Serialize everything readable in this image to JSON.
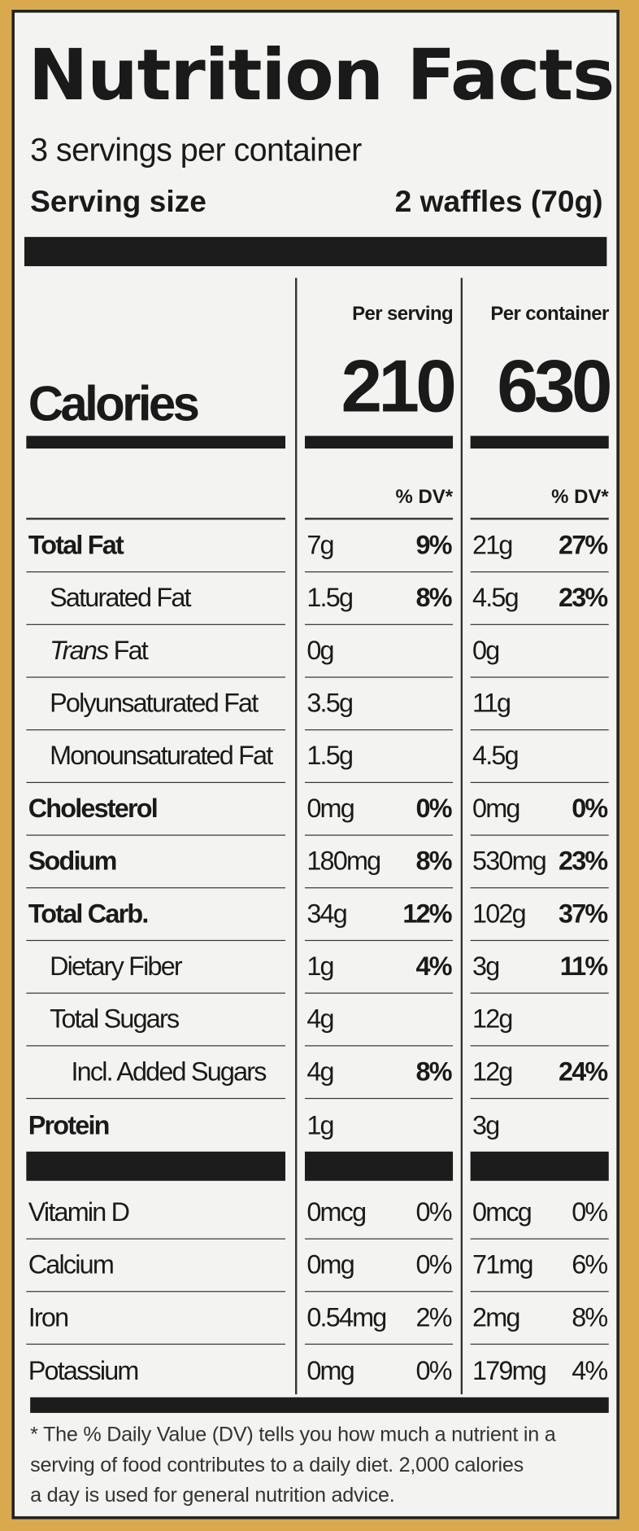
{
  "title": "Nutrition Facts",
  "servings_per_container": "3 servings per container",
  "serving_size_label": "Serving size",
  "serving_size_value": "2 waffles (70g)",
  "columns": {
    "per_serving": "Per serving",
    "per_container": "Per container"
  },
  "calories": {
    "label": "Calories",
    "per_serving": "210",
    "per_container": "630"
  },
  "dv_header": "% DV*",
  "nutrients": [
    {
      "label": "Total Fat",
      "bold": true,
      "indent": 0,
      "ps": "7g",
      "ps_dv": "9%",
      "pc": "21g",
      "pc_dv": "27%"
    },
    {
      "label": "Saturated Fat",
      "indent": 1,
      "ps": "1.5g",
      "ps_dv": "8%",
      "pc": "4.5g",
      "pc_dv": "23%"
    },
    {
      "label": "Fat",
      "italic_prefix": "Trans",
      "indent": 1,
      "ps": "0g",
      "ps_dv": "",
      "pc": "0g",
      "pc_dv": ""
    },
    {
      "label": "Polyunsaturated Fat",
      "indent": 1,
      "ps": "3.5g",
      "ps_dv": "",
      "pc": "11g",
      "pc_dv": ""
    },
    {
      "label": "Monounsaturated Fat",
      "indent": 1,
      "ps": "1.5g",
      "ps_dv": "",
      "pc": "4.5g",
      "pc_dv": ""
    },
    {
      "label": "Cholesterol",
      "bold": true,
      "indent": 0,
      "ps": "0mg",
      "ps_dv": "0%",
      "pc": "0mg",
      "pc_dv": "0%"
    },
    {
      "label": "Sodium",
      "bold": true,
      "indent": 0,
      "ps": "180mg",
      "ps_dv": "8%",
      "pc": "530mg",
      "pc_dv": "23%"
    },
    {
      "label": "Total Carb.",
      "bold": true,
      "indent": 0,
      "ps": "34g",
      "ps_dv": "12%",
      "pc": "102g",
      "pc_dv": "37%"
    },
    {
      "label": "Dietary Fiber",
      "indent": 1,
      "ps": "1g",
      "ps_dv": "4%",
      "pc": "3g",
      "pc_dv": "11%"
    },
    {
      "label": "Total Sugars",
      "indent": 1,
      "ps": "4g",
      "ps_dv": "",
      "pc": "12g",
      "pc_dv": ""
    },
    {
      "label": "Incl. Added Sugars",
      "indent": 2,
      "ps": "4g",
      "ps_dv": "8%",
      "pc": "12g",
      "pc_dv": "24%"
    },
    {
      "label": "Protein",
      "bold": true,
      "indent": 0,
      "ps": "1g",
      "ps_dv": "",
      "pc": "3g",
      "pc_dv": "",
      "noline": true
    }
  ],
  "vitamins": [
    {
      "label": "Vitamin D",
      "ps": "0mcg",
      "ps_dv": "0%",
      "pc": "0mcg",
      "pc_dv": "0%"
    },
    {
      "label": "Calcium",
      "ps": "0mg",
      "ps_dv": "0%",
      "pc": "71mg",
      "pc_dv": "6%"
    },
    {
      "label": "Iron",
      "ps": "0.54mg",
      "ps_dv": "2%",
      "pc": "2mg",
      "pc_dv": "8%"
    },
    {
      "label": "Potassium",
      "ps": "0mg",
      "ps_dv": "0%",
      "pc": "179mg",
      "pc_dv": "4%",
      "noline": true
    }
  ],
  "footnote": [
    "* The % Daily Value (DV) tells you how much a nutrient in a",
    "serving of food contributes to a daily diet. 2,000 calories",
    "a day is used for general nutrition advice."
  ]
}
